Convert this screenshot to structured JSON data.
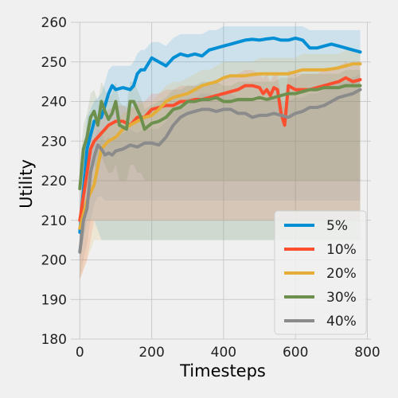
{
  "chart_data": {
    "type": "line",
    "title": "",
    "xlabel": "Timesteps",
    "ylabel": "Utility",
    "xlim": [
      -25,
      810
    ],
    "ylim": [
      180,
      260
    ],
    "xticks": [
      0,
      200,
      400,
      600,
      800
    ],
    "yticks": [
      180,
      190,
      200,
      210,
      220,
      230,
      240,
      250,
      260
    ],
    "grid": true,
    "legend_position": "lower-right",
    "series": [
      {
        "name": "5%",
        "color": "#008fd5",
        "x": [
          0,
          20,
          40,
          60,
          80,
          90,
          100,
          120,
          140,
          150,
          160,
          170,
          180,
          200,
          220,
          240,
          260,
          280,
          300,
          320,
          340,
          360,
          380,
          400,
          420,
          440,
          460,
          480,
          500,
          520,
          540,
          560,
          580,
          600,
          620,
          640,
          660,
          680,
          700,
          720,
          740,
          760,
          780
        ],
        "values": [
          207,
          228,
          235,
          236,
          242,
          244,
          243,
          243.5,
          243,
          244,
          247,
          248,
          248,
          251,
          250,
          249,
          251,
          252,
          251.5,
          252,
          251.5,
          253,
          253.5,
          254,
          254.5,
          255,
          255.5,
          255.7,
          255.5,
          255.8,
          256,
          255.5,
          255.5,
          256,
          255.5,
          253.5,
          253.5,
          254,
          254.5,
          254,
          253.5,
          253,
          252.5
        ],
        "band_lower": [
          200,
          210,
          210,
          205,
          205,
          205,
          205,
          205,
          205,
          205,
          205,
          205,
          205,
          205,
          205,
          205,
          205,
          205,
          205,
          205,
          205,
          205,
          205,
          205,
          205,
          205,
          205,
          205,
          205,
          205,
          205,
          205,
          205,
          205,
          205,
          205,
          205,
          205,
          205,
          205,
          205,
          205,
          205
        ],
        "band_upper": [
          214,
          236,
          240,
          242,
          248,
          249,
          249,
          249,
          249,
          250,
          252,
          253,
          253,
          255,
          255,
          254,
          256,
          257,
          257,
          257,
          257,
          258,
          258,
          259,
          259,
          259,
          259,
          259,
          259,
          259,
          259,
          259,
          259,
          259,
          259,
          258,
          258,
          258,
          258,
          258,
          258,
          258,
          258
        ]
      },
      {
        "name": "10%",
        "color": "#fc4f30",
        "x": [
          0,
          20,
          30,
          40,
          60,
          80,
          100,
          120,
          140,
          160,
          180,
          200,
          220,
          240,
          260,
          280,
          300,
          320,
          340,
          360,
          380,
          400,
          420,
          440,
          460,
          480,
          500,
          510,
          520,
          530,
          540,
          550,
          560,
          570,
          580,
          600,
          620,
          640,
          660,
          680,
          700,
          720,
          740,
          760,
          780
        ],
        "values": [
          210,
          222,
          228,
          230,
          232,
          234,
          235,
          235,
          234,
          236,
          236,
          238,
          238.5,
          239,
          239,
          240,
          240,
          240.5,
          240.5,
          241,
          241.5,
          242,
          242.5,
          243,
          244,
          244,
          243.5,
          242,
          243,
          241.5,
          243.5,
          243,
          237,
          234,
          244,
          243,
          243,
          243,
          243.5,
          244,
          244.5,
          245,
          246,
          245,
          245.5
        ],
        "band_lower": [
          195,
          200,
          205,
          210,
          210,
          210,
          210,
          210,
          210,
          210,
          210,
          210,
          210,
          210,
          210,
          210,
          210,
          210,
          210,
          210,
          210,
          210,
          210,
          210,
          210,
          210,
          210,
          210,
          210,
          210,
          210,
          210,
          210,
          210,
          210,
          210,
          210,
          210,
          210,
          210,
          210,
          210,
          210,
          210,
          210
        ],
        "band_upper": [
          214,
          228,
          232,
          234,
          236,
          238,
          239,
          239,
          238,
          240,
          240,
          242,
          242,
          243,
          243,
          244,
          244,
          244,
          244,
          245,
          245,
          246,
          246,
          247,
          248,
          248,
          247,
          246,
          247,
          245,
          247,
          247,
          241,
          238,
          248,
          247,
          247,
          247,
          247,
          248,
          248,
          249,
          250,
          249,
          249
        ]
      },
      {
        "name": "20%",
        "color": "#e5ae38",
        "x": [
          0,
          20,
          40,
          60,
          80,
          100,
          120,
          140,
          160,
          180,
          200,
          220,
          240,
          260,
          280,
          300,
          320,
          340,
          360,
          380,
          400,
          420,
          440,
          460,
          480,
          500,
          520,
          540,
          560,
          580,
          600,
          620,
          640,
          660,
          680,
          700,
          720,
          740,
          760,
          780
        ],
        "values": [
          208,
          215,
          219,
          228,
          230,
          231,
          233,
          234,
          235,
          236,
          236.5,
          238,
          240,
          241,
          241.5,
          242,
          243,
          244,
          244.5,
          245,
          246,
          246.5,
          246.5,
          246.5,
          246.8,
          247,
          247,
          247,
          247,
          247,
          247.5,
          248,
          248,
          248,
          248,
          248.2,
          248.5,
          249,
          249.5,
          249.5
        ],
        "band_lower": [
          195,
          200,
          205,
          205,
          205,
          205,
          205,
          205,
          205,
          205,
          205,
          205,
          205,
          205,
          205,
          205,
          205,
          205,
          205,
          205,
          205,
          205,
          205,
          205,
          205,
          205,
          205,
          205,
          205,
          205,
          205,
          205,
          205,
          205,
          205,
          205,
          205,
          205,
          205,
          205
        ],
        "band_upper": [
          212,
          220,
          223,
          232,
          234,
          235,
          237,
          238,
          239,
          240,
          240,
          242,
          244,
          245,
          245,
          246,
          247,
          248,
          248,
          249,
          250,
          250,
          250,
          250,
          250,
          251,
          251,
          251,
          251,
          251,
          251,
          252,
          252,
          252,
          252,
          252,
          252,
          253,
          253,
          253
        ]
      },
      {
        "name": "30%",
        "color": "#6d904f",
        "x": [
          0,
          10,
          20,
          30,
          40,
          50,
          60,
          70,
          80,
          90,
          100,
          110,
          120,
          130,
          140,
          150,
          160,
          170,
          180,
          200,
          220,
          240,
          260,
          280,
          300,
          320,
          340,
          360,
          380,
          400,
          420,
          440,
          460,
          480,
          500,
          520,
          540,
          560,
          580,
          600,
          620,
          640,
          660,
          680,
          700,
          720,
          740,
          760,
          780
        ],
        "values": [
          218,
          228,
          231,
          236,
          237.5,
          234,
          240,
          237.5,
          235.5,
          237,
          240,
          234,
          233.5,
          233,
          240,
          240,
          238,
          236,
          233,
          234.5,
          235,
          236,
          238,
          238.5,
          240,
          240,
          240.5,
          240.5,
          241,
          240,
          240,
          240.5,
          240.5,
          240.5,
          241,
          240.5,
          241,
          241.5,
          242,
          242,
          242.5,
          243,
          243,
          243.5,
          243.5,
          243.5,
          244,
          244,
          244
        ],
        "band_lower": [
          210,
          215,
          218,
          222,
          224,
          222,
          226,
          224,
          222,
          222,
          224,
          220,
          220,
          220,
          224,
          224,
          222,
          222,
          220,
          220,
          220,
          220,
          220,
          220,
          220,
          220,
          220,
          220,
          220,
          220,
          220,
          220,
          220,
          220,
          220,
          220,
          220,
          220,
          220,
          220,
          220,
          220,
          220,
          220,
          220,
          220,
          220,
          220,
          220
        ],
        "band_upper": [
          224,
          234,
          237,
          242,
          243,
          240,
          245,
          243,
          241,
          242,
          245,
          240,
          239,
          239,
          245,
          245,
          243,
          241,
          238,
          239,
          240,
          241,
          243,
          243,
          244,
          244,
          245,
          245,
          245,
          244,
          244,
          245,
          245,
          245,
          245,
          245,
          245,
          246,
          246,
          246,
          247,
          247,
          247,
          247,
          247,
          247,
          248,
          248,
          248
        ]
      },
      {
        "name": "40%",
        "color": "#8b8b8b",
        "x": [
          0,
          10,
          20,
          30,
          40,
          50,
          60,
          70,
          80,
          90,
          100,
          120,
          140,
          160,
          180,
          200,
          220,
          240,
          260,
          280,
          300,
          320,
          340,
          360,
          380,
          400,
          420,
          440,
          460,
          480,
          500,
          520,
          540,
          560,
          580,
          600,
          620,
          640,
          660,
          680,
          700,
          720,
          740,
          760,
          780
        ],
        "values": [
          202,
          210,
          213,
          222,
          226,
          229,
          228,
          226.5,
          227,
          226.5,
          227.5,
          228,
          229,
          228.5,
          229.5,
          229.5,
          229,
          231,
          234,
          236,
          237,
          237.5,
          238,
          238,
          237.5,
          238,
          238,
          237,
          237,
          236,
          236.5,
          236.5,
          237,
          236.5,
          236,
          237,
          237.5,
          238.5,
          238.5,
          239,
          240,
          241,
          241.5,
          242,
          243
        ],
        "band_lower": [
          195,
          200,
          204,
          210,
          214,
          216,
          216,
          215,
          215,
          215,
          215,
          215,
          215,
          215,
          215,
          215,
          215,
          215,
          215,
          215,
          215,
          215,
          215,
          215,
          215,
          215,
          215,
          215,
          215,
          215,
          215,
          215,
          215,
          215,
          215,
          215,
          215,
          215,
          215,
          215,
          215,
          215,
          215,
          215,
          215
        ],
        "band_upper": [
          208,
          214,
          218,
          226,
          230,
          233,
          232,
          230,
          231,
          230,
          231,
          232,
          233,
          232,
          233,
          233,
          233,
          235,
          238,
          240,
          241,
          241,
          242,
          242,
          241,
          242,
          242,
          241,
          241,
          240,
          240,
          240,
          241,
          240,
          240,
          241,
          241,
          242,
          242,
          243,
          244,
          245,
          245,
          246,
          247
        ]
      }
    ]
  }
}
